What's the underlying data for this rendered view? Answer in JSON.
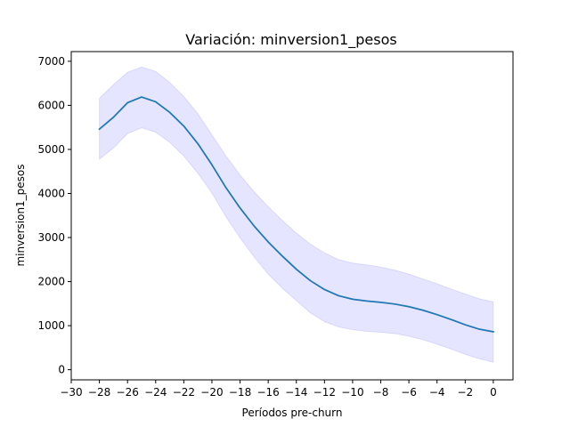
{
  "chart_data": {
    "type": "line",
    "title": "Variación: minversion1_pesos",
    "xlabel": "Períodos pre-churn",
    "ylabel": "minversion1_pesos",
    "xlim": [
      -30,
      1.4
    ],
    "ylim": [
      -230,
      7220
    ],
    "xticks": [
      -30,
      -28,
      -26,
      -24,
      -22,
      -20,
      -18,
      -16,
      -14,
      -12,
      -10,
      -8,
      -6,
      -4,
      -2,
      0
    ],
    "yticks": [
      0,
      1000,
      2000,
      3000,
      4000,
      5000,
      6000,
      7000
    ],
    "grid": false,
    "legend": "none",
    "colors": {
      "line": "#1f77b4",
      "band": "#0000ff"
    },
    "series": [
      {
        "x": [
          -28,
          -27,
          -26,
          -25,
          -24,
          -23,
          -22,
          -21,
          -20,
          -19,
          -18,
          -17,
          -16,
          -15,
          -14,
          -13,
          -12,
          -11,
          -10,
          -9,
          -8,
          -7,
          -6,
          -5,
          -4,
          -3,
          -2,
          -1,
          0
        ],
        "y": [
          5460,
          5730,
          6060,
          6190,
          6080,
          5840,
          5530,
          5130,
          4650,
          4130,
          3670,
          3260,
          2900,
          2580,
          2280,
          2020,
          1820,
          1680,
          1600,
          1560,
          1530,
          1490,
          1430,
          1350,
          1250,
          1140,
          1020,
          920,
          860
        ],
        "upper": [
          6160,
          6470,
          6750,
          6870,
          6770,
          6520,
          6200,
          5810,
          5330,
          4850,
          4420,
          4040,
          3700,
          3390,
          3100,
          2850,
          2650,
          2500,
          2420,
          2380,
          2330,
          2260,
          2170,
          2060,
          1950,
          1830,
          1720,
          1610,
          1540
        ],
        "lower": [
          4780,
          5030,
          5360,
          5490,
          5390,
          5160,
          4850,
          4460,
          4010,
          3470,
          2990,
          2560,
          2170,
          1850,
          1570,
          1290,
          1090,
          970,
          910,
          870,
          850,
          820,
          760,
          680,
          580,
          470,
          350,
          250,
          170
        ]
      }
    ]
  }
}
